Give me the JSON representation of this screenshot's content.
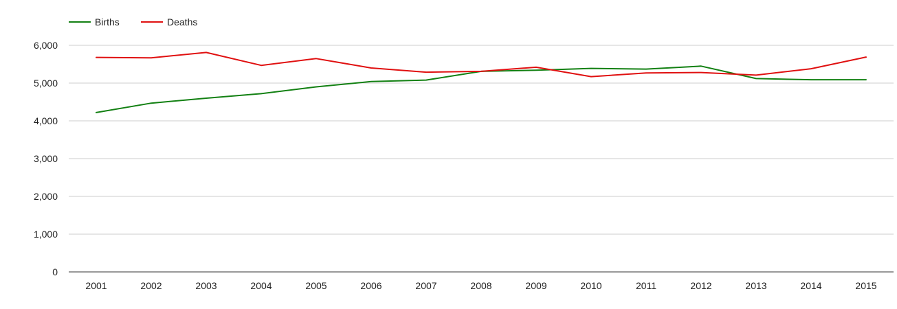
{
  "chart_data": {
    "type": "line",
    "title": "",
    "xlabel": "",
    "ylabel": "",
    "legend_position": "top-left",
    "grid": true,
    "categories": [
      "2001",
      "2002",
      "2003",
      "2004",
      "2005",
      "2006",
      "2007",
      "2008",
      "2009",
      "2010",
      "2011",
      "2012",
      "2013",
      "2014",
      "2015"
    ],
    "ylim": [
      0,
      6000
    ],
    "yticks": [
      0,
      1000,
      2000,
      3000,
      4000,
      5000,
      6000
    ],
    "ytick_labels": [
      "0",
      "1,000",
      "2,000",
      "3,000",
      "4,000",
      "5,000",
      "6,000"
    ],
    "series": [
      {
        "name": "Births",
        "color": "#128012",
        "values": [
          4220,
          4470,
          4600,
          4720,
          4900,
          5040,
          5080,
          5310,
          5340,
          5390,
          5370,
          5450,
          5120,
          5090,
          5090
        ]
      },
      {
        "name": "Deaths",
        "color": "#e01010",
        "values": [
          5680,
          5670,
          5810,
          5470,
          5650,
          5400,
          5290,
          5310,
          5420,
          5170,
          5270,
          5280,
          5210,
          5380,
          5690
        ]
      }
    ]
  }
}
